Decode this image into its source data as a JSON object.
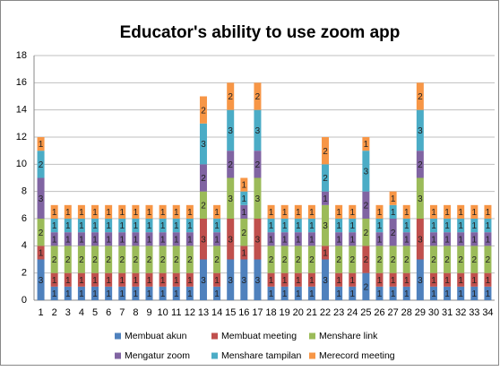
{
  "chart_data": {
    "type": "stacked_bar",
    "title": "Educator's ability to use zoom app",
    "categories": [
      "1",
      "2",
      "3",
      "4",
      "5",
      "6",
      "7",
      "8",
      "9",
      "10",
      "11",
      "12",
      "13",
      "14",
      "15",
      "16",
      "17",
      "18",
      "19",
      "20",
      "21",
      "22",
      "23",
      "24",
      "25",
      "26",
      "27",
      "28",
      "29",
      "30",
      "31",
      "32",
      "33",
      "34"
    ],
    "series": [
      {
        "name": "Membuat akun",
        "color": "#4f81bd",
        "values": [
          3,
          1,
          1,
          1,
          1,
          1,
          1,
          1,
          1,
          1,
          1,
          1,
          3,
          1,
          3,
          3,
          3,
          1,
          1,
          1,
          1,
          3,
          1,
          1,
          2,
          1,
          1,
          1,
          3,
          1,
          1,
          1,
          1,
          1
        ]
      },
      {
        "name": "Membuat meeting",
        "color": "#c0504d",
        "values": [
          1,
          1,
          1,
          1,
          1,
          1,
          1,
          1,
          1,
          1,
          1,
          1,
          3,
          1,
          3,
          1,
          3,
          1,
          1,
          1,
          1,
          1,
          1,
          1,
          2,
          1,
          1,
          1,
          3,
          1,
          1,
          1,
          1,
          1
        ]
      },
      {
        "name": "Menshare link",
        "color": "#9bbb59",
        "values": [
          2,
          2,
          2,
          2,
          2,
          2,
          2,
          2,
          2,
          2,
          2,
          2,
          2,
          2,
          3,
          2,
          3,
          2,
          2,
          2,
          2,
          3,
          2,
          2,
          2,
          2,
          2,
          2,
          3,
          2,
          2,
          2,
          2,
          2
        ]
      },
      {
        "name": "Mengatur zoom",
        "color": "#8064a2",
        "values": [
          3,
          1,
          1,
          1,
          1,
          1,
          1,
          1,
          1,
          1,
          1,
          1,
          2,
          1,
          2,
          1,
          2,
          1,
          1,
          1,
          1,
          1,
          1,
          1,
          2,
          1,
          2,
          1,
          2,
          1,
          1,
          1,
          1,
          1
        ]
      },
      {
        "name": "Menshare tampilan",
        "color": "#4bacc6",
        "values": [
          2,
          1,
          1,
          1,
          1,
          1,
          1,
          1,
          1,
          1,
          1,
          1,
          3,
          1,
          3,
          1,
          3,
          1,
          1,
          1,
          1,
          2,
          1,
          1,
          3,
          1,
          1,
          1,
          3,
          1,
          1,
          1,
          1,
          1
        ]
      },
      {
        "name": "Merecord meeting",
        "color": "#f79646",
        "values": [
          1,
          1,
          1,
          1,
          1,
          1,
          1,
          1,
          1,
          1,
          1,
          1,
          2,
          1,
          2,
          1,
          2,
          1,
          1,
          1,
          1,
          2,
          1,
          1,
          1,
          1,
          1,
          1,
          2,
          1,
          1,
          1,
          1,
          1
        ]
      }
    ],
    "ylim": [
      0,
      18
    ],
    "yticks": [
      0,
      2,
      4,
      6,
      8,
      10,
      12,
      14,
      16,
      18
    ],
    "grid": true,
    "legend": "bottom"
  }
}
